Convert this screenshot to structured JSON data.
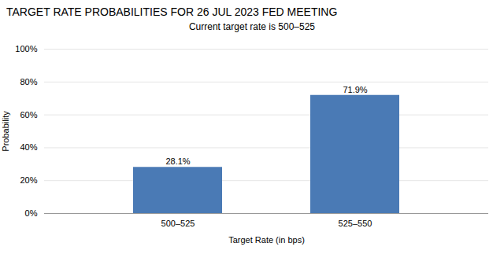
{
  "chart_data": {
    "type": "bar",
    "title": "TARGET RATE PROBABILITIES FOR 26 JUL 2023 FED MEETING",
    "subtitle": "Current target rate is 500–525",
    "categories": [
      "500–525",
      "525–550"
    ],
    "values": [
      28.1,
      71.9
    ],
    "value_labels": [
      "28.1%",
      "71.9%"
    ],
    "data_labels": true,
    "color": "#4a7ab5",
    "xlabel": "Target Rate (in bps)",
    "ylabel": "Probability",
    "ylim": [
      0,
      100
    ],
    "yticks": [
      {
        "value": 0,
        "label": "0%"
      },
      {
        "value": 20,
        "label": "20%"
      },
      {
        "value": 40,
        "label": "40%"
      },
      {
        "value": 60,
        "label": "60%"
      },
      {
        "value": 80,
        "label": "80%"
      },
      {
        "value": 100,
        "label": "100%"
      }
    ],
    "grid": true
  }
}
